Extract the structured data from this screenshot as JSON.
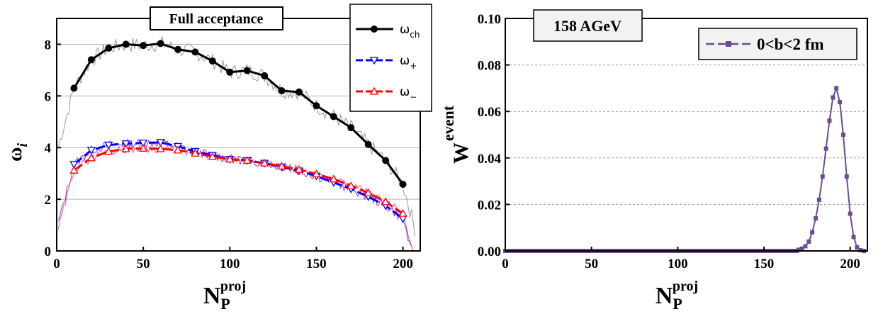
{
  "chart_data": [
    {
      "type": "line",
      "title": "Full acceptance",
      "xlabel": "N",
      "xlabel_sub": "P",
      "xlabel_sup": "proj",
      "ylabel": "ω",
      "ylabel_sub": "i",
      "xlim": [
        0,
        210
      ],
      "ylim": [
        0,
        9
      ],
      "xticks": [
        "0",
        "50",
        "100",
        "150",
        "200"
      ],
      "yticks": [
        "0",
        "2",
        "4",
        "6",
        "8"
      ],
      "grid": "horizontal",
      "legend_position": "top-right",
      "series": [
        {
          "name": "ω",
          "name_sub": "ch",
          "color": "#000000",
          "marker": "filled-circle",
          "x": [
            10,
            20,
            30,
            40,
            50,
            60,
            70,
            80,
            90,
            100,
            110,
            120,
            130,
            140,
            150,
            160,
            170,
            180,
            190,
            200
          ],
          "values": [
            6.3,
            7.4,
            7.85,
            8.0,
            7.95,
            8.03,
            7.8,
            7.7,
            7.35,
            6.92,
            6.98,
            6.78,
            6.2,
            6.15,
            5.62,
            5.2,
            4.77,
            4.12,
            3.5,
            2.58
          ]
        },
        {
          "name": "ω",
          "name_sub": "+",
          "color": "#0000ff",
          "marker": "open-triangle-down",
          "x": [
            10,
            20,
            30,
            40,
            50,
            60,
            70,
            80,
            90,
            100,
            110,
            120,
            130,
            140,
            150,
            160,
            170,
            180,
            190,
            200
          ],
          "values": [
            3.35,
            3.9,
            4.1,
            4.15,
            4.18,
            4.2,
            4.05,
            3.85,
            3.7,
            3.55,
            3.5,
            3.4,
            3.25,
            3.1,
            2.9,
            2.65,
            2.4,
            2.1,
            1.75,
            1.25
          ]
        },
        {
          "name": "ω",
          "name_sub": "−",
          "color": "#ff0000",
          "marker": "open-triangle-up",
          "x": [
            10,
            20,
            30,
            40,
            50,
            60,
            70,
            80,
            90,
            100,
            110,
            120,
            130,
            140,
            150,
            160,
            170,
            180,
            190,
            200
          ],
          "values": [
            3.12,
            3.6,
            3.85,
            3.95,
            3.97,
            3.95,
            3.9,
            3.78,
            3.65,
            3.55,
            3.5,
            3.4,
            3.28,
            3.15,
            2.98,
            2.78,
            2.52,
            2.25,
            1.9,
            1.45
          ]
        }
      ]
    },
    {
      "type": "line",
      "title": "158 AGeV",
      "xlabel": "N",
      "xlabel_sub": "P",
      "xlabel_sup": "proj",
      "ylabel": "W",
      "ylabel_sub": "event",
      "xlim": [
        0,
        210
      ],
      "ylim": [
        0,
        0.1
      ],
      "xticks": [
        "0",
        "50",
        "100",
        "150",
        "200"
      ],
      "yticks": [
        "0.00",
        "0.02",
        "0.04",
        "0.06",
        "0.08",
        "0.10"
      ],
      "grid": "horizontal",
      "legend_position": "top-right",
      "series": [
        {
          "name": "0<b<2 fm",
          "color": "#6a4c93",
          "marker": "filled-square",
          "x": [
            170,
            172,
            174,
            176,
            178,
            180,
            182,
            184,
            186,
            188,
            190,
            192,
            194,
            196,
            198,
            200,
            202,
            204,
            206
          ],
          "values": [
            0.0005,
            0.001,
            0.002,
            0.004,
            0.008,
            0.014,
            0.022,
            0.032,
            0.044,
            0.056,
            0.066,
            0.07,
            0.064,
            0.05,
            0.032,
            0.016,
            0.006,
            0.0015,
            0.0003
          ]
        }
      ]
    }
  ]
}
